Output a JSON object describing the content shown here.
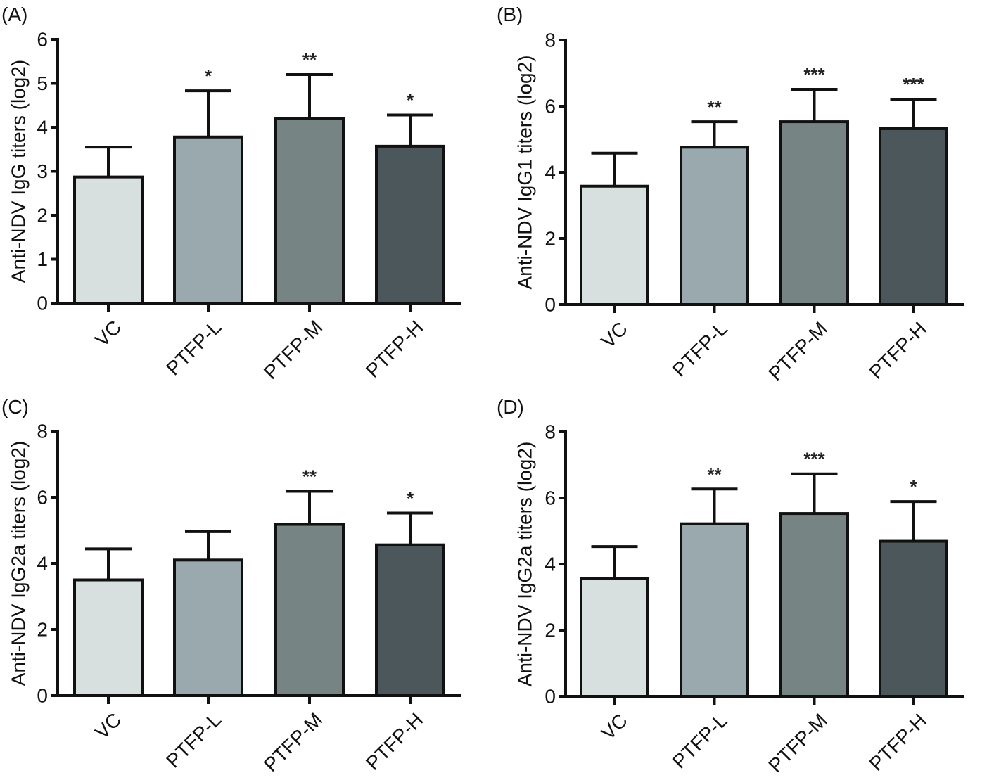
{
  "figure": {
    "colors": {
      "VC": "#d8dfdf",
      "PTFP-L": "#9aa9ad",
      "PTFP-M": "#768584",
      "PTFP-H": "#4c575b",
      "axis": "#111111"
    }
  },
  "chart_data": [
    {
      "type": "bar",
      "panel": "(A)",
      "title": "",
      "xlabel": "",
      "ylabel": "Anti-NDV IgG titers (log2)",
      "categories": [
        "VC",
        "PTFP-L",
        "PTFP-M",
        "PTFP-H"
      ],
      "values": [
        2.87,
        3.78,
        4.2,
        3.57
      ],
      "error_upper": [
        3.55,
        4.83,
        5.2,
        4.28
      ],
      "significance": [
        "",
        "*",
        "**",
        "*"
      ],
      "ylim": [
        0,
        6
      ],
      "yticks": [
        0,
        1,
        2,
        3,
        4,
        5,
        6
      ],
      "grid": false,
      "legend": "none"
    },
    {
      "type": "bar",
      "panel": "(B)",
      "title": "",
      "xlabel": "",
      "ylabel": "Anti-NDV IgG1 titers (log2)",
      "categories": [
        "VC",
        "PTFP-L",
        "PTFP-M",
        "PTFP-H"
      ],
      "values": [
        3.58,
        4.76,
        5.53,
        5.32
      ],
      "error_upper": [
        4.58,
        5.53,
        6.51,
        6.21
      ],
      "significance": [
        "",
        "**",
        "***",
        "***"
      ],
      "ylim": [
        0,
        8
      ],
      "yticks": [
        0,
        2,
        4,
        6,
        8
      ],
      "grid": false,
      "legend": "none"
    },
    {
      "type": "bar",
      "panel": "(C)",
      "title": "",
      "xlabel": "",
      "ylabel": "Anti-NDV IgG2a titers (log2)",
      "categories": [
        "VC",
        "PTFP-L",
        "PTFP-M",
        "PTFP-H"
      ],
      "values": [
        3.5,
        4.1,
        5.18,
        4.56
      ],
      "error_upper": [
        4.44,
        4.96,
        6.18,
        5.52
      ],
      "significance": [
        "",
        "",
        "**",
        "*"
      ],
      "ylim": [
        0,
        8
      ],
      "yticks": [
        0,
        2,
        4,
        6,
        8
      ],
      "grid": false,
      "legend": "none"
    },
    {
      "type": "bar",
      "panel": "(D)",
      "title": "",
      "xlabel": "",
      "ylabel": "Anti-NDV IgG2a titers (log2)",
      "categories": [
        "VC",
        "PTFP-L",
        "PTFP-M",
        "PTFP-H"
      ],
      "values": [
        3.57,
        5.22,
        5.53,
        4.69
      ],
      "error_upper": [
        4.53,
        6.27,
        6.73,
        5.89
      ],
      "significance": [
        "",
        "**",
        "***",
        "*"
      ],
      "ylim": [
        0,
        8
      ],
      "yticks": [
        0,
        2,
        4,
        6,
        8
      ],
      "grid": false,
      "legend": "none"
    }
  ]
}
